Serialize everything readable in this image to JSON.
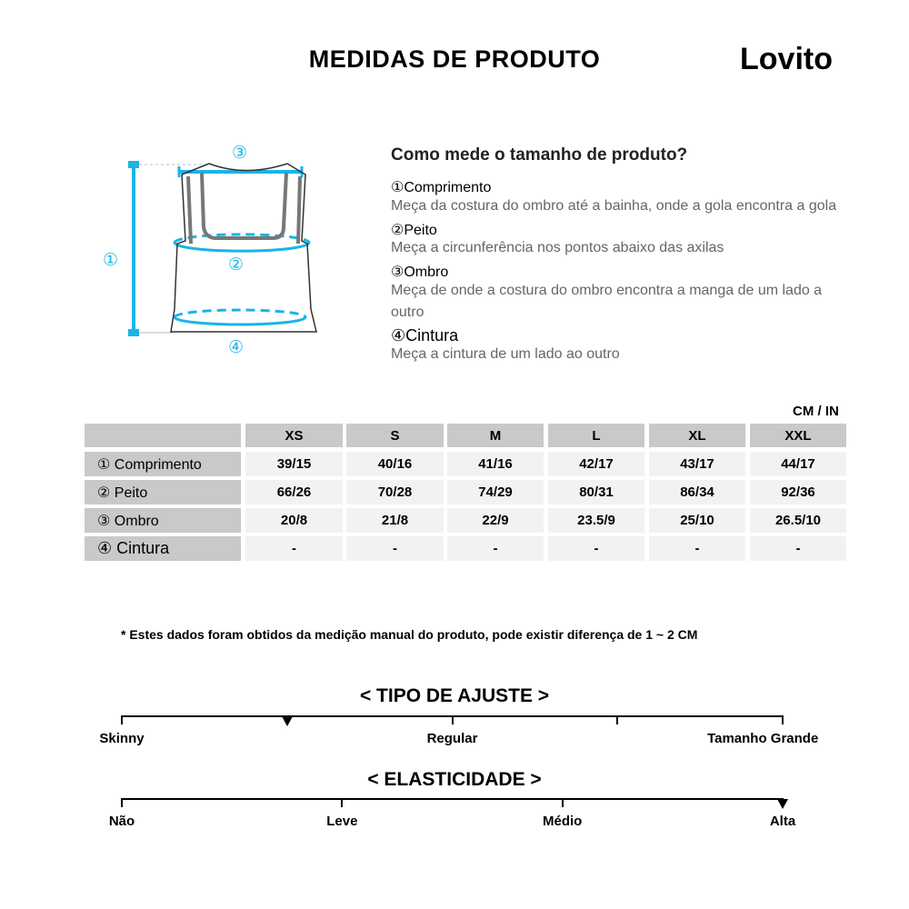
{
  "header": {
    "title": "MEDIDAS DE PRODUTO",
    "brand": "Lovito"
  },
  "diagram": {
    "markers": [
      "①",
      "②",
      "③",
      "④"
    ],
    "accent": "#1ab4e8"
  },
  "howto": {
    "heading": "Como mede o tamanho de produto?",
    "items": [
      {
        "label": "①Comprimento",
        "desc": "Meça da costura do ombro até a bainha, onde a gola encontra a gola"
      },
      {
        "label": "②Peito",
        "desc": "Meça a circunferência nos pontos abaixo das axilas"
      },
      {
        "label": "③Ombro",
        "desc": "Meça de onde a costura do ombro encontra a manga de um lado a outro"
      },
      {
        "label": "④Cintura",
        "desc": "Meça a cintura de um lado ao outro"
      }
    ]
  },
  "table": {
    "unit": "CM / IN",
    "sizes": [
      "XS",
      "S",
      "M",
      "L",
      "XL",
      "XXL"
    ],
    "rows": [
      {
        "label": "① Comprimento",
        "values": [
          "39/15",
          "40/16",
          "41/16",
          "42/17",
          "43/17",
          "44/17"
        ]
      },
      {
        "label": "② Peito",
        "values": [
          "66/26",
          "70/28",
          "74/29",
          "80/31",
          "86/34",
          "92/36"
        ]
      },
      {
        "label": "③ Ombro",
        "values": [
          "20/8",
          "21/8",
          "22/9",
          "23.5/9",
          "25/10",
          "26.5/10"
        ]
      },
      {
        "label": "④ Cintura",
        "values": [
          "-",
          "-",
          "-",
          "-",
          "-",
          "-"
        ]
      }
    ]
  },
  "note": "* Estes dados foram obtidos da medição manual do produto, pode existir diferença de 1 ~ 2 CM",
  "fit": {
    "title": "< TIPO DE AJUSTE >",
    "labels": [
      "Skinny",
      "Regular",
      "Tamanho Grande"
    ],
    "marker": 0.25
  },
  "elasticity": {
    "title": "< ELASTICIDADE >",
    "labels": [
      "Não",
      "Leve",
      "Médio",
      "Alta"
    ],
    "marker": 1.0
  }
}
